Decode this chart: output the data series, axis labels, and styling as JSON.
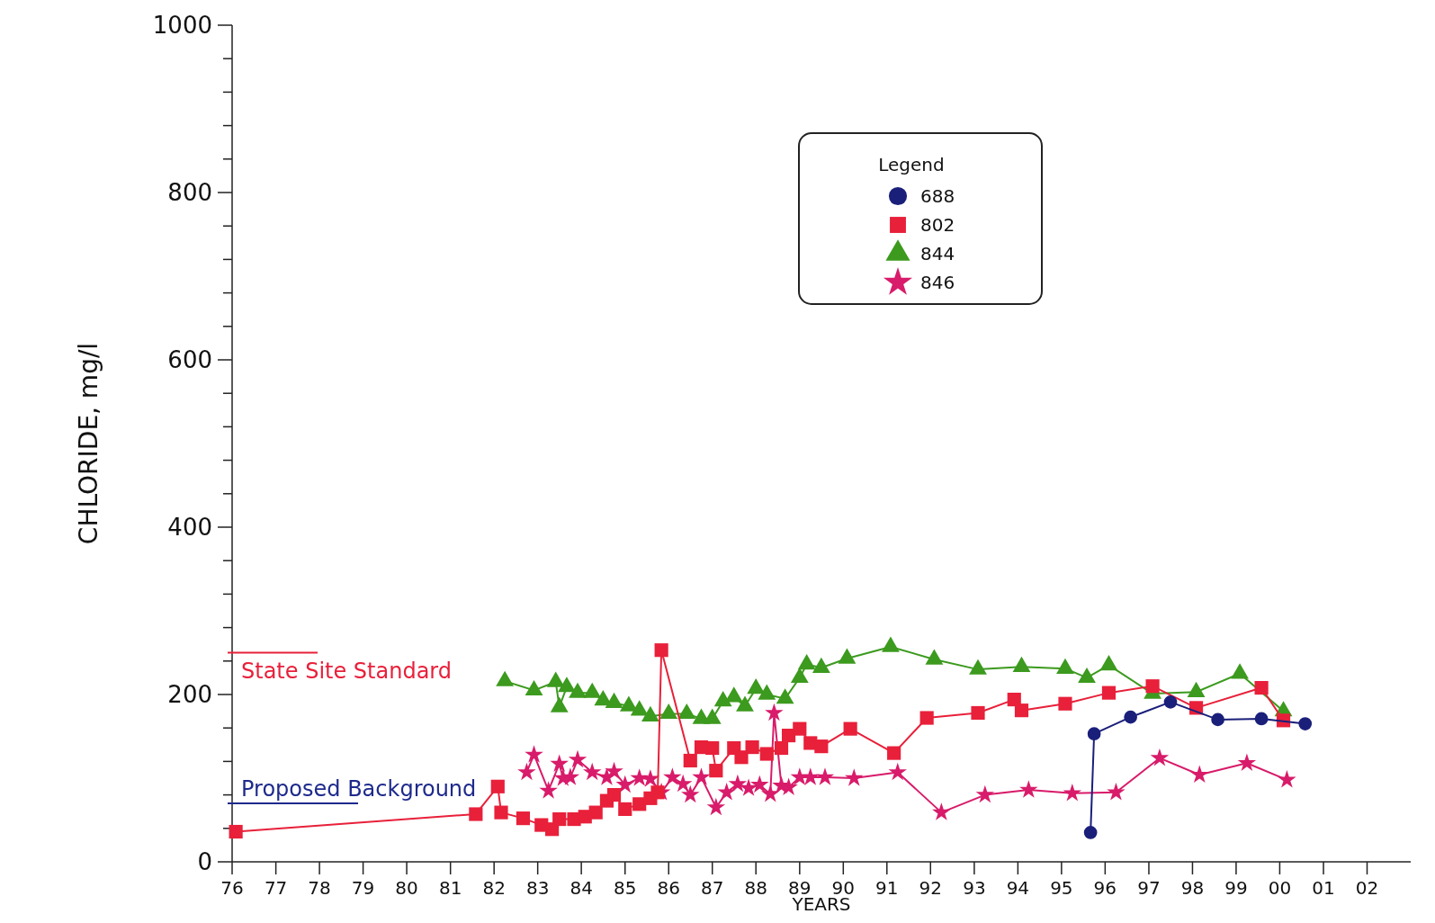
{
  "chart_data": {
    "type": "line",
    "xlabel": "YEARS",
    "ylabel": "CHLORIDE, mg/l",
    "legend_title": "Legend",
    "legend": "top right",
    "grid": false,
    "xlim": [
      "1976",
      "2003"
    ],
    "ylim": [
      0,
      1000
    ],
    "xticks": [
      {
        "value": "1976",
        "label": "76"
      },
      {
        "value": "1977",
        "label": "77"
      },
      {
        "value": "1978",
        "label": "78"
      },
      {
        "value": "1979",
        "label": "79"
      },
      {
        "value": "1980",
        "label": "80"
      },
      {
        "value": "1981",
        "label": "81"
      },
      {
        "value": "1982",
        "label": "82"
      },
      {
        "value": "1983",
        "label": "83"
      },
      {
        "value": "1984",
        "label": "84"
      },
      {
        "value": "1985",
        "label": "85"
      },
      {
        "value": "1986",
        "label": "86"
      },
      {
        "value": "1987",
        "label": "87"
      },
      {
        "value": "1988",
        "label": "88"
      },
      {
        "value": "1989",
        "label": "89"
      },
      {
        "value": "1990",
        "label": "90"
      },
      {
        "value": "1991",
        "label": "91"
      },
      {
        "value": "1992",
        "label": "92"
      },
      {
        "value": "1993",
        "label": "93"
      },
      {
        "value": "1994",
        "label": "94"
      },
      {
        "value": "1995",
        "label": "95"
      },
      {
        "value": "1996",
        "label": "96"
      },
      {
        "value": "1997",
        "label": "97"
      },
      {
        "value": "1998",
        "label": "98"
      },
      {
        "value": "1999",
        "label": "99"
      },
      {
        "value": "2000",
        "label": "00"
      },
      {
        "value": "2001",
        "label": "01"
      },
      {
        "value": "2002",
        "label": "02"
      }
    ],
    "yticks": [
      0,
      {
        "value": 40,
        "label": null
      },
      {
        "value": 80,
        "label": null
      },
      {
        "value": 120,
        "label": null
      },
      {
        "value": 160,
        "label": null
      },
      200,
      {
        "value": 240,
        "label": null
      },
      {
        "value": 280,
        "label": null
      },
      {
        "value": 320,
        "label": null
      },
      {
        "value": 360,
        "label": null
      },
      400,
      {
        "value": 440,
        "label": null
      },
      {
        "value": 480,
        "label": null
      },
      {
        "value": 520,
        "label": null
      },
      {
        "value": 560,
        "label": null
      },
      600,
      {
        "value": 640,
        "label": null
      },
      {
        "value": 680,
        "label": null
      },
      {
        "value": 720,
        "label": null
      },
      {
        "value": 760,
        "label": null
      },
      800,
      {
        "value": 840,
        "label": null
      },
      {
        "value": 880,
        "label": null
      },
      {
        "value": 920,
        "label": null
      },
      {
        "value": 960,
        "label": null
      },
      1000
    ],
    "ref_lines": [
      {
        "axis": "y",
        "value": 250,
        "label": "State Site Standard",
        "color": "#e8203a"
      },
      {
        "axis": "y",
        "value": 70,
        "label": "Proposed Background",
        "color": "#1e2a8c"
      }
    ],
    "series": [
      {
        "name": "688",
        "color": "#1a1f7a",
        "marker": "circle",
        "x": [
          "1995-09",
          "1995-10",
          "1996-08",
          "1997-07",
          "1998-08",
          "1999-08",
          "2000-08"
        ],
        "values": [
          35,
          153,
          173,
          191,
          170,
          171,
          165
        ]
      },
      {
        "name": "802",
        "color": "#e8203a",
        "marker": "square",
        "x": [
          "1976-02",
          "1981-08",
          "1982-02",
          "1982-03",
          "1982-09",
          "1983-02",
          "1983-05",
          "1983-07",
          "1983-11",
          "1984-02",
          "1984-05",
          "1984-08",
          "1984-10",
          "1985-01",
          "1985-05",
          "1985-08",
          "1985-10",
          "1985-11",
          "1986-07",
          "1986-10",
          "1987-01",
          "1987-02",
          "1987-07",
          "1987-09",
          "1987-12",
          "1988-04",
          "1988-08",
          "1988-10",
          "1989-01",
          "1989-04",
          "1989-07",
          "1990-03",
          "1991-03",
          "1991-12",
          "1993-02",
          "1993-12",
          "1994-02",
          "1995-02",
          "1996-02",
          "1997-02",
          "1998-02",
          "1999-08",
          "2000-02"
        ],
        "values": [
          36,
          57,
          90,
          59,
          52,
          44,
          39,
          51,
          51,
          54,
          59,
          73,
          80,
          63,
          69,
          76,
          83,
          253,
          121,
          137,
          136,
          109,
          136,
          125,
          137,
          129,
          136,
          151,
          159,
          142,
          138,
          159,
          130,
          172,
          178,
          194,
          181,
          189,
          202,
          210,
          184,
          208,
          169
        ]
      },
      {
        "name": "844",
        "color": "#3c9a1e",
        "marker": "triangle",
        "x": [
          "1982-04",
          "1982-12",
          "1983-06",
          "1983-07",
          "1983-09",
          "1983-12",
          "1984-04",
          "1984-07",
          "1984-10",
          "1985-02",
          "1985-05",
          "1985-08",
          "1986-01",
          "1986-06",
          "1986-10",
          "1987-01",
          "1987-04",
          "1987-07",
          "1987-10",
          "1988-01",
          "1988-04",
          "1988-09",
          "1989-01",
          "1989-03",
          "1989-07",
          "1990-02",
          "1991-02",
          "1992-02",
          "1993-02",
          "1994-02",
          "1995-02",
          "1995-08",
          "1996-02",
          "1997-02",
          "1998-02",
          "1999-02",
          "2000-02"
        ],
        "values": [
          216,
          205,
          215,
          185,
          209,
          202,
          202,
          193,
          190,
          186,
          181,
          174,
          177,
          177,
          171,
          171,
          192,
          197,
          186,
          207,
          200,
          195,
          220,
          236,
          232,
          243,
          257,
          242,
          230,
          233,
          231,
          220,
          235,
          201,
          203,
          225,
          180
        ]
      },
      {
        "name": "846",
        "color": "#d81b6a",
        "marker": "star",
        "x": [
          "1982-10",
          "1982-12",
          "1983-04",
          "1983-07",
          "1983-08",
          "1983-10",
          "1983-12",
          "1984-04",
          "1984-08",
          "1984-10",
          "1985-01",
          "1985-05",
          "1985-08",
          "1985-11",
          "1986-02",
          "1986-05",
          "1986-07",
          "1986-10",
          "1987-02",
          "1987-05",
          "1987-08",
          "1987-11",
          "1988-02",
          "1988-05",
          "1988-06",
          "1988-08",
          "1988-10",
          "1989-01",
          "1989-04",
          "1989-08",
          "1990-04",
          "1991-04",
          "1992-04",
          "1993-04",
          "1994-04",
          "1995-04",
          "1996-04",
          "1997-04",
          "1998-03",
          "1999-04",
          "2000-03"
        ],
        "values": [
          107,
          128,
          85,
          117,
          100,
          101,
          122,
          107,
          101,
          108,
          92,
          100,
          99,
          83,
          101,
          93,
          80,
          101,
          65,
          83,
          93,
          88,
          92,
          81,
          178,
          91,
          89,
          101,
          101,
          101,
          100,
          107,
          59,
          80,
          86,
          82,
          83,
          124,
          104,
          118,
          98
        ]
      }
    ]
  }
}
